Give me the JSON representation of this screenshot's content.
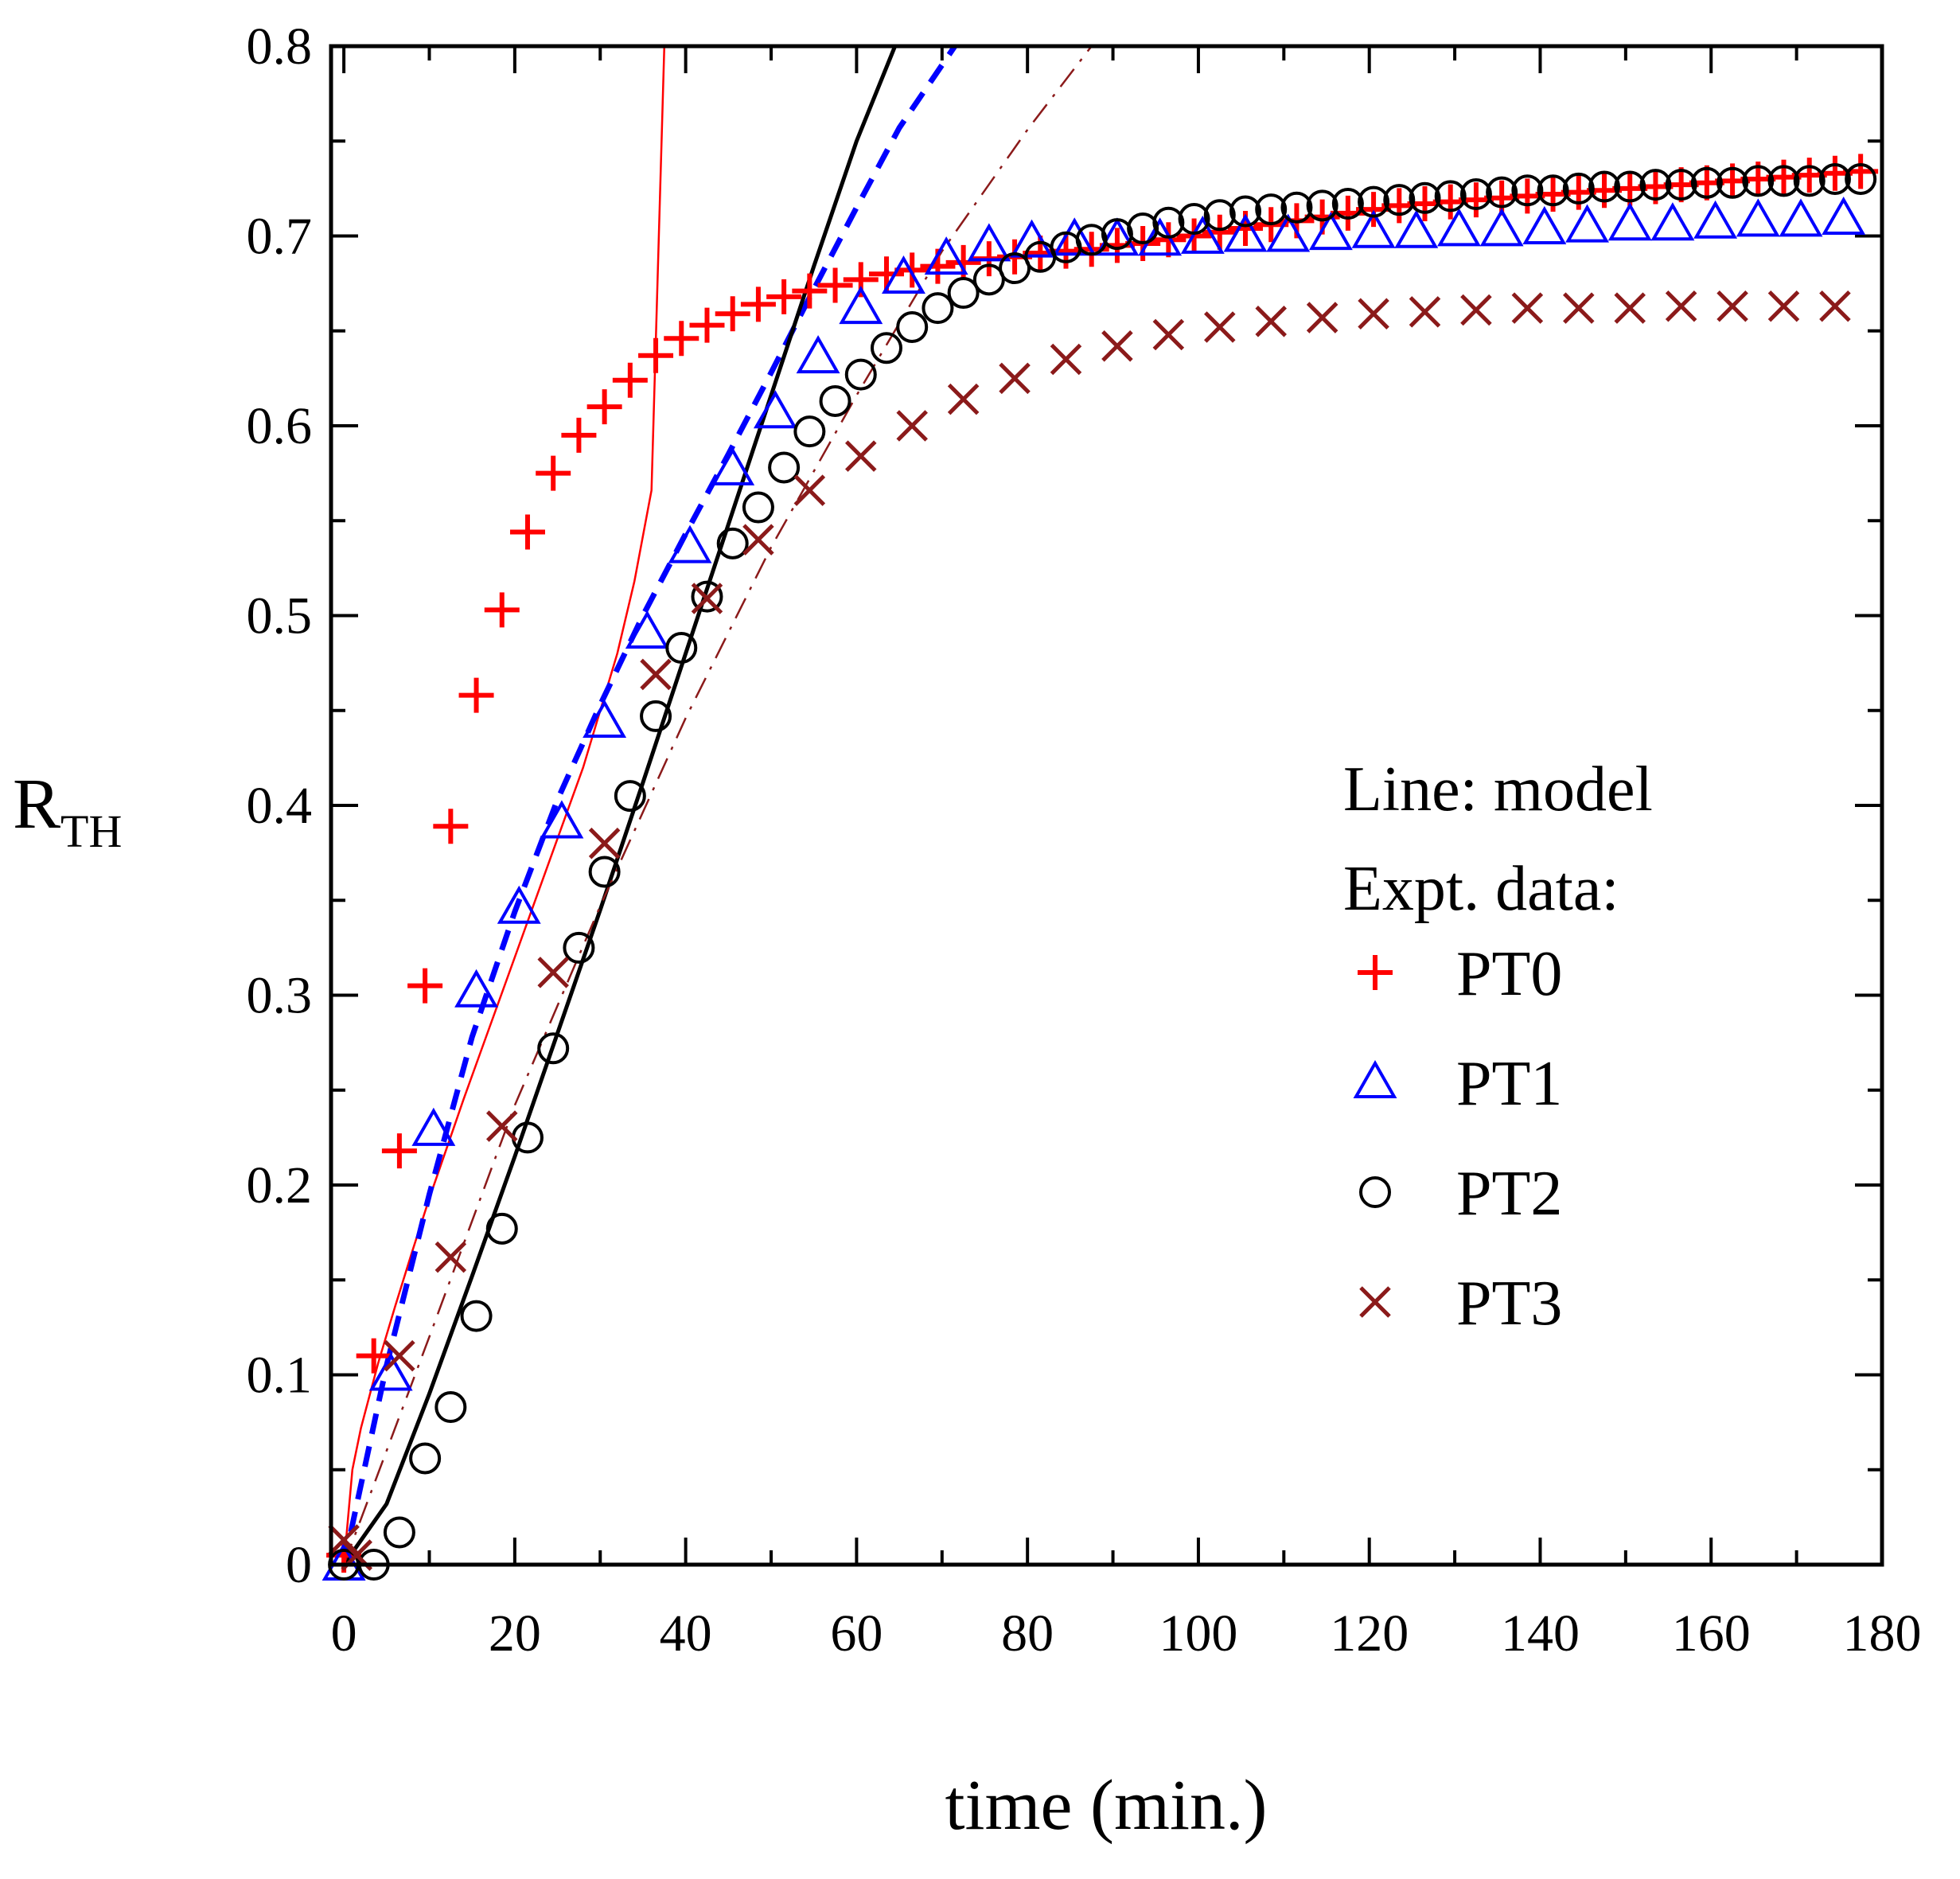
{
  "chart_data": {
    "type": "scatter",
    "title": "",
    "xlabel": "time (min.)",
    "ylabel": "R",
    "ylabel_subscript": "TH",
    "xlim": [
      -1.5,
      180
    ],
    "ylim": [
      0,
      0.8
    ],
    "xticks": [
      0,
      20,
      40,
      60,
      80,
      100,
      120,
      140,
      160,
      180
    ],
    "yticks": [
      0,
      0.1,
      0.2,
      0.3,
      0.4,
      0.5,
      0.6,
      0.7,
      0.8
    ],
    "ytick_labels": [
      "0",
      "0.1",
      "0.2",
      "0.3",
      "0.4",
      "0.5",
      "0.6",
      "0.7",
      "0.8"
    ],
    "legend": {
      "position": "right-center",
      "note_line1": "Line: model",
      "note_line2": "Expt. data:"
    },
    "series": [
      {
        "name": "PT0",
        "color": "#ff0000",
        "marker": "plus",
        "x": [
          0,
          3.5,
          6.5,
          9.5,
          12.5,
          15.5,
          18.5,
          21.5,
          24.5,
          27.5,
          30.5,
          33.5,
          36.5,
          39.5,
          42.5,
          45.5,
          48.5,
          51.5,
          54.5,
          57.5,
          60.5,
          63.5,
          66.5,
          69.5,
          72.5,
          75.5,
          78.5,
          81.5,
          84.5,
          87.5,
          90.5,
          93.5,
          96.5,
          99.5,
          102.5,
          105.5,
          108.5,
          111.5,
          114.5,
          117.5,
          120.5,
          123.5,
          126.5,
          129.5,
          132.5,
          135.5,
          138.5,
          141.5,
          144.5,
          147.5,
          150.5,
          153.5,
          156.5,
          159.5,
          162.5,
          165.5,
          168.5,
          171.5,
          174.5,
          177.5
        ],
        "y": [
          0.005,
          0.11,
          0.218,
          0.305,
          0.389,
          0.458,
          0.503,
          0.544,
          0.575,
          0.595,
          0.61,
          0.624,
          0.637,
          0.646,
          0.653,
          0.659,
          0.664,
          0.668,
          0.671,
          0.674,
          0.677,
          0.68,
          0.682,
          0.684,
          0.686,
          0.688,
          0.689,
          0.691,
          0.692,
          0.693,
          0.695,
          0.696,
          0.698,
          0.7,
          0.702,
          0.704,
          0.706,
          0.708,
          0.71,
          0.712,
          0.714,
          0.716,
          0.717,
          0.718,
          0.719,
          0.72,
          0.721,
          0.722,
          0.723,
          0.724,
          0.725,
          0.726,
          0.727,
          0.728,
          0.729,
          0.73,
          0.731,
          0.732,
          0.733,
          0.734
        ]
      },
      {
        "name": "PT1",
        "color": "#0000ff",
        "marker": "triangle",
        "x": [
          0,
          5.5,
          10.5,
          15.5,
          20.5,
          25.5,
          30.5,
          35.5,
          40.5,
          45.5,
          50.5,
          55.5,
          60.5,
          65.5,
          70.5,
          75.5,
          80.5,
          85.5,
          90.5,
          95.5,
          100.5,
          105.5,
          110.5,
          115.5,
          120.5,
          125.5,
          130.5,
          135.5,
          140.5,
          145.5,
          150.5,
          155.5,
          160.5,
          165.5,
          170.5,
          175.5
        ],
        "y": [
          0.0,
          0.1,
          0.229,
          0.302,
          0.346,
          0.391,
          0.444,
          0.491,
          0.536,
          0.577,
          0.607,
          0.636,
          0.662,
          0.678,
          0.688,
          0.695,
          0.697,
          0.698,
          0.698,
          0.698,
          0.699,
          0.7,
          0.7,
          0.701,
          0.702,
          0.702,
          0.703,
          0.703,
          0.704,
          0.705,
          0.706,
          0.706,
          0.707,
          0.708,
          0.708,
          0.709
        ]
      },
      {
        "name": "PT2",
        "color": "#000000",
        "marker": "circle",
        "x": [
          0,
          3.5,
          6.5,
          9.5,
          12.5,
          15.5,
          18.5,
          21.5,
          24.5,
          27.5,
          30.5,
          33.5,
          36.5,
          39.5,
          42.5,
          45.5,
          48.5,
          51.5,
          54.5,
          57.5,
          60.5,
          63.5,
          66.5,
          69.5,
          72.5,
          75.5,
          78.5,
          81.5,
          84.5,
          87.5,
          90.5,
          93.5,
          96.5,
          99.5,
          102.5,
          105.5,
          108.5,
          111.5,
          114.5,
          117.5,
          120.5,
          123.5,
          126.5,
          129.5,
          132.5,
          135.5,
          138.5,
          141.5,
          144.5,
          147.5,
          150.5,
          153.5,
          156.5,
          159.5,
          162.5,
          165.5,
          168.5,
          171.5,
          174.5,
          177.5
        ],
        "y": [
          0.0,
          0.0,
          0.017,
          0.056,
          0.083,
          0.131,
          0.177,
          0.225,
          0.272,
          0.325,
          0.365,
          0.405,
          0.447,
          0.483,
          0.51,
          0.538,
          0.557,
          0.578,
          0.597,
          0.613,
          0.627,
          0.641,
          0.652,
          0.662,
          0.67,
          0.677,
          0.683,
          0.689,
          0.694,
          0.698,
          0.701,
          0.704,
          0.707,
          0.709,
          0.711,
          0.713,
          0.714,
          0.715,
          0.716,
          0.717,
          0.718,
          0.719,
          0.72,
          0.721,
          0.722,
          0.723,
          0.724,
          0.724,
          0.725,
          0.726,
          0.726,
          0.727,
          0.727,
          0.728,
          0.728,
          0.729,
          0.729,
          0.729,
          0.73,
          0.73
        ]
      },
      {
        "name": "PT3",
        "color": "#8b1a1a",
        "marker": "x",
        "x": [
          0,
          1.5,
          6.5,
          12.5,
          18.5,
          24.5,
          30.5,
          36.5,
          42.5,
          48.5,
          54.5,
          60.5,
          66.5,
          72.5,
          78.5,
          84.5,
          90.5,
          96.5,
          102.5,
          108.5,
          114.5,
          120.5,
          126.5,
          132.5,
          138.5,
          144.5,
          150.5,
          156.5,
          162.5,
          168.5,
          174.5
        ],
        "y": [
          0.013,
          0.005,
          0.11,
          0.162,
          0.231,
          0.312,
          0.38,
          0.469,
          0.509,
          0.54,
          0.566,
          0.584,
          0.6,
          0.614,
          0.625,
          0.635,
          0.642,
          0.648,
          0.652,
          0.655,
          0.657,
          0.659,
          0.66,
          0.661,
          0.662,
          0.662,
          0.662,
          0.663,
          0.663,
          0.663,
          0.663
        ]
      }
    ],
    "model_lines": [
      {
        "name": "PT0 model",
        "color": "#ff0000",
        "style": "solid-thin",
        "x": [
          0,
          1,
          2,
          4,
          6,
          8,
          10,
          12,
          14,
          16,
          18,
          20,
          22,
          24,
          26,
          28,
          30,
          32,
          34,
          36,
          37.5
        ],
        "y": [
          0.0,
          0.05,
          0.072,
          0.106,
          0.136,
          0.165,
          0.193,
          0.219,
          0.245,
          0.27,
          0.295,
          0.32,
          0.345,
          0.37,
          0.395,
          0.42,
          0.45,
          0.48,
          0.518,
          0.566,
          0.8
        ]
      },
      {
        "name": "PT1 model",
        "color": "#0000ff",
        "style": "dashed-thick",
        "x": [
          0,
          5,
          10,
          15,
          20,
          25,
          30,
          35,
          40,
          45,
          50,
          55,
          60,
          65,
          71.5
        ],
        "y": [
          0.0,
          0.105,
          0.195,
          0.278,
          0.344,
          0.403,
          0.453,
          0.5,
          0.543,
          0.585,
          0.628,
          0.672,
          0.715,
          0.757,
          0.8
        ]
      },
      {
        "name": "PT2 model",
        "color": "#000000",
        "style": "solid-thick",
        "x": [
          0,
          5,
          10,
          15,
          20,
          25,
          30,
          35,
          40,
          45,
          50,
          55,
          60,
          64.5
        ],
        "y": [
          0.0,
          0.032,
          0.09,
          0.152,
          0.215,
          0.28,
          0.345,
          0.412,
          0.48,
          0.548,
          0.616,
          0.684,
          0.75,
          0.8
        ]
      },
      {
        "name": "PT3 model",
        "color": "#8b1a1a",
        "style": "dash-dot-thin",
        "x": [
          0,
          10,
          20,
          30,
          40,
          50,
          60,
          70,
          80,
          87.5
        ],
        "y": [
          0.0,
          0.12,
          0.242,
          0.347,
          0.446,
          0.536,
          0.616,
          0.692,
          0.756,
          0.8
        ]
      }
    ]
  }
}
